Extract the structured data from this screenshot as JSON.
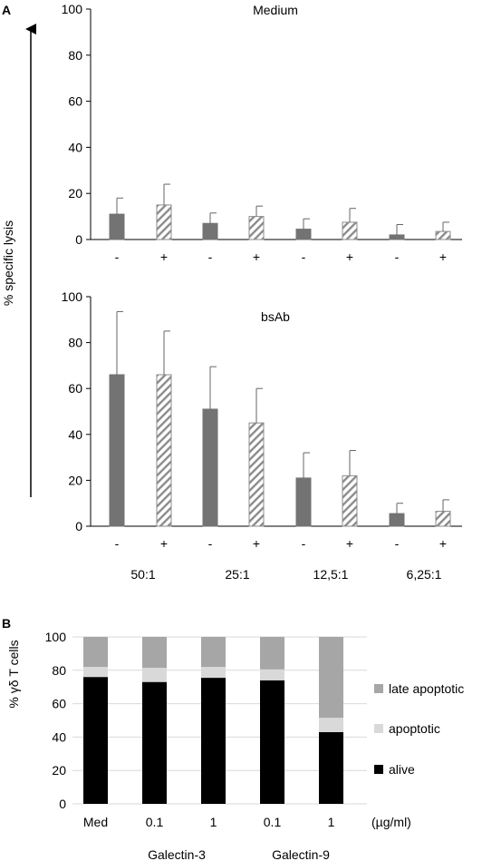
{
  "panel_a": {
    "label": "A",
    "ylabel": "% specific lysis",
    "xgroup_labels": [
      "50:1",
      "25:1",
      "12,5:1",
      "6,25:1"
    ]
  },
  "panel_b": {
    "label": "B",
    "ylabel": "% γδ T cells",
    "unit": "(µg/ml)",
    "group_labels": [
      "Galectin-3",
      "Galectin-9"
    ]
  },
  "colors": {
    "solid_bar": "#737373",
    "hatch": "#8c8c8c",
    "late_apoptotic": "#a6a6a6",
    "apoptotic": "#d9d9d9",
    "alive": "#000000"
  },
  "chart_data": [
    {
      "type": "bar",
      "title": "Medium",
      "ylim": [
        0,
        100
      ],
      "yticks": [
        0,
        20,
        40,
        60,
        80,
        100
      ],
      "categories": [
        "-",
        "+",
        "-",
        "+",
        "-",
        "+",
        "-",
        "+"
      ],
      "values": [
        11,
        15,
        7,
        10,
        4.5,
        7.5,
        2,
        3.5
      ],
      "errors": [
        7,
        9,
        4.5,
        4.5,
        4.5,
        6,
        4.5,
        4
      ]
    },
    {
      "type": "bar",
      "title": "bsAb",
      "ylim": [
        0,
        100
      ],
      "yticks": [
        0,
        20,
        40,
        60,
        80,
        100
      ],
      "categories": [
        "-",
        "+",
        "-",
        "+",
        "-",
        "+",
        "-",
        "+"
      ],
      "values": [
        66,
        66,
        51,
        45,
        21,
        22,
        5.5,
        6.5
      ],
      "errors": [
        27.5,
        19,
        18.5,
        15,
        11,
        11,
        4.5,
        5
      ]
    },
    {
      "type": "bar",
      "stacked": true,
      "ylim": [
        0,
        100
      ],
      "yticks": [
        0,
        20,
        40,
        60,
        80,
        100
      ],
      "categories": [
        "Med",
        "0.1",
        "1",
        "0.1",
        "1"
      ],
      "series": [
        {
          "name": "alive",
          "values": [
            76,
            73,
            75.5,
            74,
            43
          ]
        },
        {
          "name": "apoptotic",
          "values": [
            6,
            8.5,
            6.5,
            6.5,
            8.5
          ]
        },
        {
          "name": "late apoptotic",
          "values": [
            18,
            18.5,
            18,
            19.5,
            48.5
          ]
        }
      ],
      "legend": [
        "late apoptotic",
        "apoptotic",
        "alive"
      ]
    }
  ]
}
